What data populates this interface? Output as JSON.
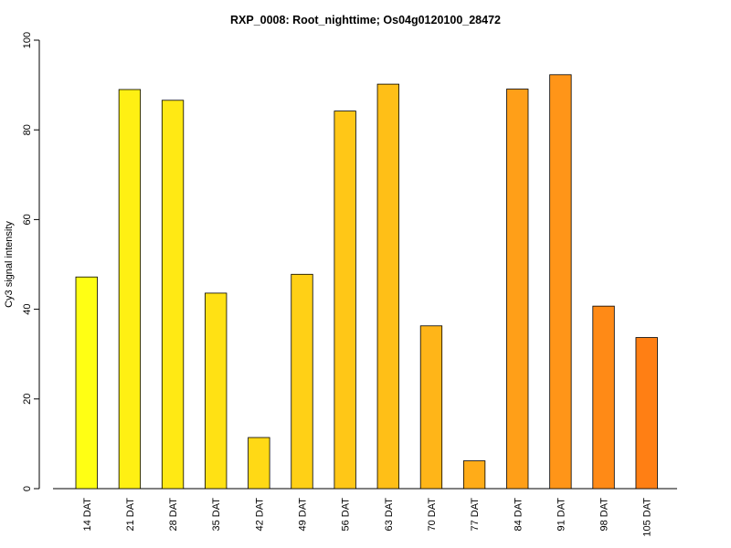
{
  "chart_data": {
    "type": "bar",
    "title": "RXP_0008: Root_nighttime; Os04g0120100_28472",
    "xlabel": "",
    "ylabel": "Cy3 signal intensity",
    "categories": [
      "14 DAT",
      "21 DAT",
      "28 DAT",
      "35 DAT",
      "42 DAT",
      "49 DAT",
      "56 DAT",
      "63 DAT",
      "70 DAT",
      "77 DAT",
      "84 DAT",
      "91 DAT",
      "98 DAT",
      "105 DAT"
    ],
    "values": [
      47.2,
      89.0,
      86.6,
      43.6,
      11.4,
      47.8,
      84.2,
      90.2,
      36.3,
      6.2,
      89.1,
      92.3,
      40.7,
      33.7
    ],
    "colors": [
      "#FFFF14",
      "#FFF013",
      "#FFE914",
      "#FFE114",
      "#FFD915",
      "#FFD016",
      "#FFC717",
      "#FFBF17",
      "#FFB518",
      "#FFAC18",
      "#FF9F18",
      "#FF9518",
      "#FF8A16",
      "#FF7F14"
    ],
    "ylim": [
      0,
      100
    ],
    "yticks": [
      0,
      20,
      40,
      60,
      80,
      100
    ],
    "grid": false,
    "legend": "none"
  }
}
